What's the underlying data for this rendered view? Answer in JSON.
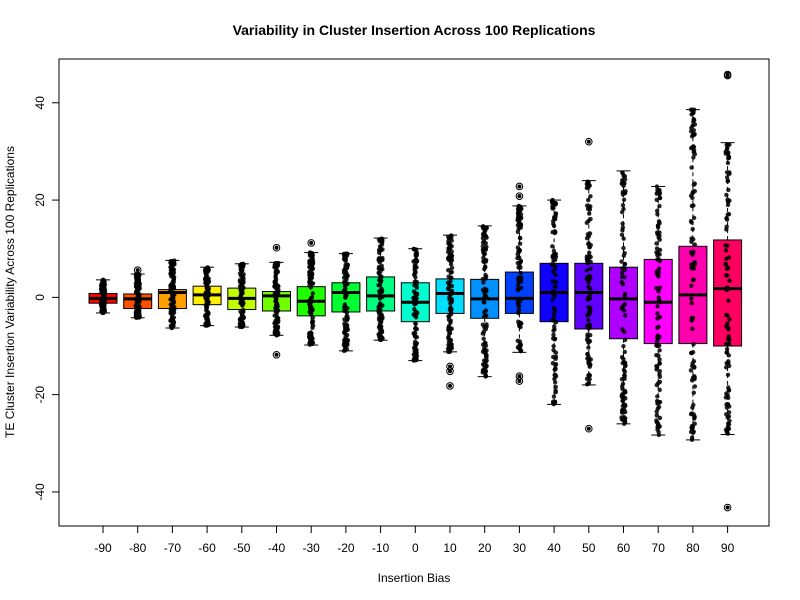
{
  "chart_data": {
    "type": "box",
    "title": "Variability in Cluster Insertion Across 100 Replications",
    "xlabel": "Insertion Bias",
    "ylabel": "TE Cluster Insertion Variability Across 100 Replications",
    "x_ticks": [
      "-90",
      "-80",
      "-70",
      "-60",
      "-50",
      "-40",
      "-30",
      "-20",
      "-10",
      "0",
      "10",
      "20",
      "30",
      "40",
      "50",
      "60",
      "70",
      "80",
      "90"
    ],
    "y_ticks": [
      -40,
      -20,
      0,
      20,
      40
    ],
    "ylim": [
      -47,
      49
    ],
    "grid": false,
    "legend": "none",
    "boxes": [
      {
        "category": "-90",
        "color": "#FF0000",
        "q1": -1.2,
        "median": -0.2,
        "q3": 0.8,
        "whisker_low": -3.2,
        "whisker_high": 3.6,
        "outliers": []
      },
      {
        "category": "-80",
        "color": "#FF5000",
        "q1": -2.3,
        "median": -0.3,
        "q3": 0.7,
        "whisker_low": -4.2,
        "whisker_high": 4.8,
        "outliers": [
          5.6
        ]
      },
      {
        "category": "-70",
        "color": "#FF9F00",
        "q1": -2.3,
        "median": 1.0,
        "q3": 1.6,
        "whisker_low": -6.3,
        "whisker_high": 7.6,
        "outliers": []
      },
      {
        "category": "-60",
        "color": "#FFEF00",
        "q1": -1.5,
        "median": 0.5,
        "q3": 2.3,
        "whisker_low": -5.8,
        "whisker_high": 6.2,
        "outliers": []
      },
      {
        "category": "-50",
        "color": "#BFFF00",
        "q1": -2.5,
        "median": -0.2,
        "q3": 1.9,
        "whisker_low": -6.1,
        "whisker_high": 6.9,
        "outliers": []
      },
      {
        "category": "-40",
        "color": "#70FF00",
        "q1": -2.8,
        "median": 0.3,
        "q3": 1.2,
        "whisker_low": -7.8,
        "whisker_high": 7.2,
        "outliers": [
          -11.8,
          10.2
        ]
      },
      {
        "category": "-30",
        "color": "#20FF00",
        "q1": -3.8,
        "median": -0.8,
        "q3": 2.2,
        "whisker_low": -9.8,
        "whisker_high": 9.2,
        "outliers": [
          11.2
        ]
      },
      {
        "category": "-20",
        "color": "#00FF30",
        "q1": -3.0,
        "median": 1.0,
        "q3": 3.0,
        "whisker_low": -11.0,
        "whisker_high": 9.0,
        "outliers": []
      },
      {
        "category": "-10",
        "color": "#00FF80",
        "q1": -2.8,
        "median": 0.3,
        "q3": 4.2,
        "whisker_low": -8.8,
        "whisker_high": 12.2,
        "outliers": []
      },
      {
        "category": "0",
        "color": "#00FFCF",
        "q1": -5.0,
        "median": -1.0,
        "q3": 3.0,
        "whisker_low": -13.0,
        "whisker_high": 10.0,
        "outliers": []
      },
      {
        "category": "10",
        "color": "#00DFFF",
        "q1": -3.3,
        "median": 0.8,
        "q3": 3.8,
        "whisker_low": -11.2,
        "whisker_high": 12.8,
        "outliers": [
          -14.2,
          -15.2,
          -18.2
        ]
      },
      {
        "category": "20",
        "color": "#0090FF",
        "q1": -4.3,
        "median": -0.3,
        "q3": 3.7,
        "whisker_low": -16.3,
        "whisker_high": 14.7,
        "outliers": []
      },
      {
        "category": "30",
        "color": "#0040FF",
        "q1": -3.3,
        "median": -0.2,
        "q3": 5.2,
        "whisker_low": -11.3,
        "whisker_high": 18.8,
        "outliers": [
          -16.2,
          -17.2,
          20.8,
          22.8
        ]
      },
      {
        "category": "40",
        "color": "#1000FF",
        "q1": -5.0,
        "median": 1.0,
        "q3": 7.0,
        "whisker_low": -22.0,
        "whisker_high": 20.0,
        "outliers": []
      },
      {
        "category": "50",
        "color": "#6000FF",
        "q1": -6.5,
        "median": 1.0,
        "q3": 7.0,
        "whisker_low": -18.0,
        "whisker_high": 24.0,
        "outliers": [
          -27.0,
          32.0
        ]
      },
      {
        "category": "60",
        "color": "#AF00FF",
        "q1": -8.5,
        "median": -0.3,
        "q3": 6.2,
        "whisker_low": -26.0,
        "whisker_high": 26.0,
        "outliers": []
      },
      {
        "category": "70",
        "color": "#FF00FF",
        "q1": -9.5,
        "median": -1.0,
        "q3": 7.8,
        "whisker_low": -28.3,
        "whisker_high": 22.8,
        "outliers": []
      },
      {
        "category": "80",
        "color": "#FF00AF",
        "q1": -9.5,
        "median": 0.5,
        "q3": 10.5,
        "whisker_low": -29.3,
        "whisker_high": 38.6,
        "outliers": []
      },
      {
        "category": "90",
        "color": "#FF0060",
        "q1": -10.0,
        "median": 1.8,
        "q3": 11.8,
        "whisker_low": -28.2,
        "whisker_high": 31.8,
        "outliers": [
          -43.2,
          45.8,
          45.6
        ]
      }
    ]
  }
}
